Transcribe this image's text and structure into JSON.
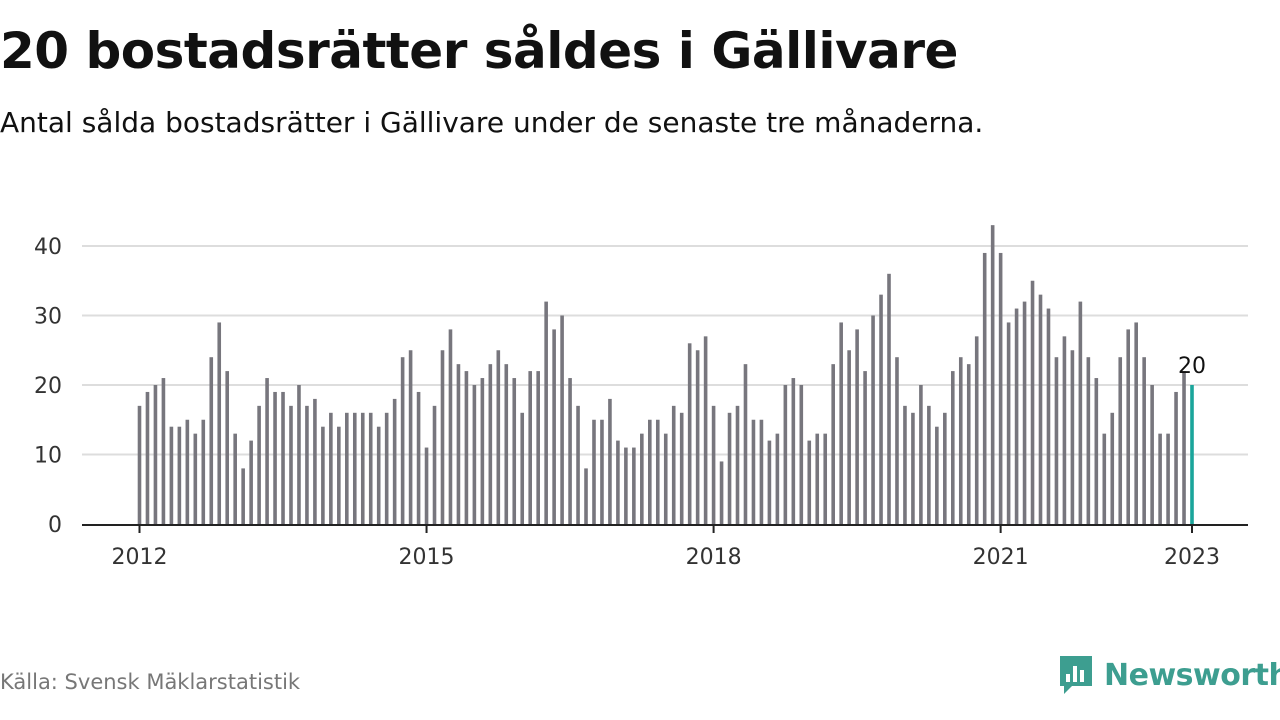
{
  "header": {
    "title": "20 bostadsrätter såldes i Gällivare",
    "subtitle": "Antal sålda bostadsrätter i Gällivare under de senaste tre månaderna."
  },
  "footer": {
    "source": "Källa: Svensk Mäklarstatistik",
    "brand": "Newsworthy"
  },
  "colors": {
    "bar": "#77767d",
    "highlight": "#1aa59b",
    "grid": "#dddddd",
    "axis": "#222222",
    "brand": "#3d9e90"
  },
  "chart_data": {
    "type": "bar",
    "title": "20 bostadsrätter såldes i Gällivare",
    "xlabel": "",
    "ylabel": "",
    "ylim": [
      0,
      45
    ],
    "yticks": [
      0,
      10,
      20,
      30,
      40
    ],
    "grid": true,
    "start": "2012-01",
    "x_tick_labels": [
      {
        "label": "2012",
        "index": 0
      },
      {
        "label": "2015",
        "index": 36
      },
      {
        "label": "2018",
        "index": 72
      },
      {
        "label": "2021",
        "index": 108
      },
      {
        "label": "2023",
        "index": 132
      }
    ],
    "highlight_index": 132,
    "highlight_label": "20",
    "values": [
      17,
      19,
      20,
      21,
      14,
      14,
      15,
      13,
      15,
      24,
      29,
      22,
      13,
      8,
      12,
      17,
      21,
      19,
      19,
      17,
      20,
      17,
      18,
      14,
      16,
      14,
      16,
      16,
      16,
      16,
      14,
      16,
      18,
      24,
      25,
      19,
      11,
      17,
      25,
      28,
      23,
      22,
      20,
      21,
      23,
      25,
      23,
      21,
      16,
      22,
      22,
      32,
      28,
      30,
      21,
      17,
      8,
      15,
      15,
      18,
      12,
      11,
      11,
      13,
      15,
      15,
      13,
      17,
      16,
      26,
      25,
      27,
      17,
      9,
      16,
      17,
      23,
      15,
      15,
      12,
      13,
      20,
      21,
      20,
      12,
      13,
      13,
      23,
      29,
      25,
      28,
      22,
      30,
      33,
      36,
      24,
      17,
      16,
      20,
      17,
      14,
      16,
      22,
      24,
      23,
      27,
      39,
      43,
      39,
      29,
      31,
      32,
      35,
      33,
      31,
      24,
      27,
      25,
      32,
      24,
      21,
      13,
      16,
      24,
      28,
      29,
      24,
      20,
      13,
      13,
      19,
      22,
      20
    ]
  }
}
